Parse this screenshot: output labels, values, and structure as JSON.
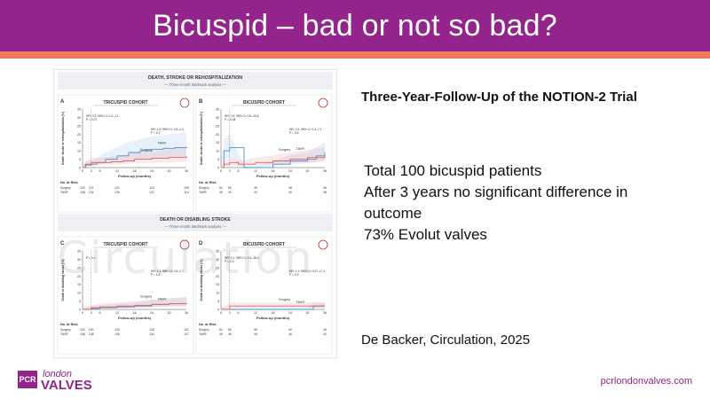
{
  "slide": {
    "title": "Bicuspid – bad or not so bad?",
    "follow_up_title": "Three-Year-Follow-Up of the NOTION-2 Trial",
    "bullets": [
      "Total 100 bicuspid patients",
      "After 3 years no significant difference in",
      "outcome",
      "73% Evolut valves"
    ],
    "citation": "De Backer, Circulation, 2025",
    "website": "pcrlondonvalves.com",
    "logo": {
      "mark": "PCR",
      "line1": "london",
      "line2": "VALVES"
    },
    "colors": {
      "brand": "#92248c",
      "accent": "#f2785c",
      "tavr": "#4a90d9",
      "surgery": "#e06060"
    }
  },
  "figure": {
    "watermark": "Circulation",
    "sections": [
      {
        "title": "DEATH, STROKE OR REHOSPITALIZATION",
        "subtitle": "Three-month landmark analysis"
      },
      {
        "title": "DEATH OR DISABLING STROKE",
        "subtitle": "Three-month landmark analysis"
      }
    ],
    "panels": [
      {
        "letter": "A",
        "cohort": "TRICUSPID COHORT",
        "ylabel": "Death, stroke or rehospitalization (%)",
        "hr1": "HR: 0.3; 95% CI: 0.1–1.1",
        "p1": "P = 0.07",
        "hr2": "HR: 1.9; 95% CI: 0.8–4.4",
        "p2": "P = 0.1",
        "label_a": "TAVR",
        "label_b": "Surgery",
        "xlabel": "Follow-up (months)",
        "risk_label": "No. at Risk",
        "xticks": [
          "0",
          "3",
          "6",
          "12",
          "18",
          "24",
          "30",
          "36"
        ],
        "yticks": [
          "0",
          "5",
          "10",
          "15",
          "20",
          "25",
          "30",
          "35"
        ],
        "risk_header": [
          "0",
          "3",
          "12",
          "24",
          "36"
        ],
        "risk": [
          {
            "name": "Surgery",
            "values": [
              "132",
              "121",
              "121",
              "115",
              "109"
            ]
          },
          {
            "name": "TAVR",
            "values": [
              "138",
              "134",
              "126",
              "122",
              "114"
            ]
          }
        ]
      },
      {
        "letter": "B",
        "cohort": "BICUSPID COHORT",
        "ylabel": "Death, stroke or rehospitalization (%)",
        "hr1": "HR: 0.5; 95% CI: 0.8–33.8",
        "p1": "P = 0.08",
        "hr2": "HR: 1.6; 95% CI: 0.4–7.1",
        "p2": "P = 0.5",
        "label_a": "TAVR",
        "label_b": "Surgery",
        "xlabel": "Follow-up (months)",
        "risk_label": "No. at Risk",
        "xticks": [
          "0",
          "3",
          "6",
          "12",
          "18",
          "24",
          "30",
          "36"
        ],
        "yticks": [
          "0",
          "5",
          "10",
          "15",
          "20",
          "25",
          "30",
          "35"
        ],
        "risk_header": [
          "0",
          "3",
          "12",
          "24",
          "36"
        ],
        "risk": [
          {
            "name": "Surgery",
            "values": [
              "51",
              "50",
              "49",
              "48",
              "46"
            ]
          },
          {
            "name": "TAVR",
            "values": [
              "49",
              "43",
              "42",
              "40",
              "36"
            ]
          }
        ]
      },
      {
        "letter": "C",
        "cohort": "TRICUSPID COHORT",
        "ylabel": "Death or disabling stroke (%)",
        "hr1": "P = 0.1",
        "p1": "",
        "hr2": "HR: 1.1; 95% CI: 0.5–2.7",
        "p2": "P = 0.8",
        "label_a": "TAVR",
        "label_b": "Surgery",
        "xlabel": "Follow-up (months)",
        "risk_label": "No. at Risk",
        "xticks": [
          "0",
          "3",
          "6",
          "12",
          "18",
          "24",
          "30",
          "36"
        ],
        "yticks": [
          "0",
          "5",
          "10",
          "15",
          "20",
          "25",
          "30",
          "35"
        ],
        "risk_header": [
          "0",
          "3",
          "12",
          "24",
          "36"
        ],
        "risk": [
          {
            "name": "Surgery",
            "values": [
              "132",
              "130",
              "130",
              "125",
              "121"
            ]
          },
          {
            "name": "TAVR",
            "values": [
              "138",
              "138",
              "135",
              "134",
              "127"
            ]
          }
        ]
      },
      {
        "letter": "D",
        "cohort": "BICUSPID COHORT",
        "ylabel": "Death or disabling stroke (%)",
        "hr1": "HR: 3.1; 95% CI: 0.3–36.0",
        "p1": "P = 0.3",
        "hr2": "HR: 1.1; 95% CI: 0.07–17.1",
        "p2": "P = 0.9",
        "label_a": "TAVR",
        "label_b": "Surgery",
        "xlabel": "Follow-up (months)",
        "risk_label": "No. at Risk",
        "xticks": [
          "0",
          "3",
          "6",
          "12",
          "18",
          "24",
          "30",
          "36"
        ],
        "yticks": [
          "0",
          "5",
          "10",
          "15",
          "20",
          "25",
          "30",
          "35"
        ],
        "risk_header": [
          "0",
          "3",
          "12",
          "24",
          "36"
        ],
        "risk": [
          {
            "name": "Surgery",
            "values": [
              "51",
              "50",
              "50",
              "50",
              "46"
            ]
          },
          {
            "name": "TAVR",
            "values": [
              "49",
              "46",
              "46",
              "46",
              "42"
            ]
          }
        ]
      }
    ]
  },
  "chart_data": [
    {
      "type": "line",
      "panel": "A",
      "title": "TRICUSPID COHORT",
      "xlabel": "Follow-up (months)",
      "ylabel": "Death, stroke or rehospitalization (%)",
      "xlim": [
        0,
        36
      ],
      "ylim": [
        0,
        35
      ],
      "series": [
        {
          "name": "TAVR",
          "x": [
            0,
            1,
            3,
            5,
            8,
            12,
            16,
            20,
            24,
            28,
            32,
            36
          ],
          "values": [
            0,
            1.5,
            2,
            3,
            5,
            7,
            9,
            10,
            11,
            11.5,
            12,
            12.5
          ]
        },
        {
          "name": "Surgery",
          "x": [
            0,
            1,
            3,
            6,
            10,
            14,
            18,
            24,
            30,
            36
          ],
          "values": [
            0,
            2,
            3,
            3,
            3.5,
            4,
            5,
            5.5,
            6,
            7
          ]
        }
      ]
    },
    {
      "type": "line",
      "panel": "B",
      "title": "BICUSPID COHORT",
      "xlabel": "Follow-up (months)",
      "ylabel": "Death, stroke or rehospitalization (%)",
      "xlim": [
        0,
        36
      ],
      "ylim": [
        0,
        35
      ],
      "series": [
        {
          "name": "TAVR",
          "x": [
            0,
            1,
            3,
            8,
            12,
            18,
            24,
            30,
            33,
            36
          ],
          "values": [
            0,
            10,
            12,
            0,
            0,
            2,
            4,
            5,
            7,
            9
          ]
        },
        {
          "name": "Surgery",
          "x": [
            0,
            1,
            3,
            6,
            12,
            18,
            24,
            30,
            36
          ],
          "values": [
            0,
            2,
            3,
            2,
            3,
            4,
            5,
            6,
            7
          ]
        }
      ]
    },
    {
      "type": "line",
      "panel": "C",
      "title": "TRICUSPID COHORT",
      "xlabel": "Follow-up (months)",
      "ylabel": "Death or disabling stroke (%)",
      "xlim": [
        0,
        36
      ],
      "ylim": [
        0,
        35
      ],
      "series": [
        {
          "name": "TAVR",
          "x": [
            0,
            3,
            6,
            12,
            18,
            24,
            30,
            36
          ],
          "values": [
            0,
            0.5,
            1,
            1.5,
            2,
            3,
            3.5,
            4
          ]
        },
        {
          "name": "Surgery",
          "x": [
            0,
            3,
            6,
            12,
            18,
            24,
            30,
            36
          ],
          "values": [
            0,
            1,
            1.5,
            2,
            2.5,
            3,
            3.5,
            4
          ]
        }
      ]
    },
    {
      "type": "line",
      "panel": "D",
      "title": "BICUSPID COHORT",
      "xlabel": "Follow-up (months)",
      "ylabel": "Death or disabling stroke (%)",
      "xlim": [
        0,
        36
      ],
      "ylim": [
        0,
        35
      ],
      "series": [
        {
          "name": "TAVR",
          "x": [
            0,
            3,
            6,
            12,
            18,
            24,
            30,
            32,
            36
          ],
          "values": [
            0,
            0,
            0,
            0,
            0,
            0,
            0,
            2,
            2
          ]
        },
        {
          "name": "Surgery",
          "x": [
            0,
            3,
            6,
            12,
            18,
            24,
            30,
            36
          ],
          "values": [
            0,
            2,
            2,
            2,
            2,
            2,
            2,
            2
          ]
        }
      ]
    }
  ]
}
